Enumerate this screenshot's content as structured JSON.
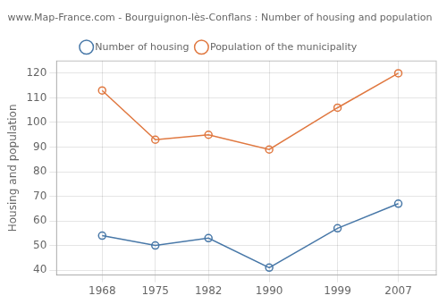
{
  "chart_data": {
    "type": "line",
    "title": "www.Map-France.com - Bourguignon-lès-Conflans : Number of housing and population",
    "ylabel": "Housing and population",
    "x": [
      1968,
      1975,
      1982,
      1990,
      1999,
      2007
    ],
    "series": [
      {
        "name": "Number of housing",
        "color": "#4878a8",
        "values": [
          54,
          50,
          53,
          41,
          57,
          67
        ]
      },
      {
        "name": "Population of the municipality",
        "color": "#e07840",
        "values": [
          113,
          93,
          95,
          89,
          106,
          120
        ]
      }
    ],
    "xlim": [
      1962,
      2012
    ],
    "xticks": [
      1968,
      1975,
      1982,
      1990,
      1999,
      2007
    ],
    "ylim": [
      38,
      125
    ],
    "yticks": [
      40,
      50,
      60,
      70,
      80,
      90,
      100,
      110,
      120
    ],
    "grid": true,
    "legend": "top",
    "marker": "circle"
  }
}
